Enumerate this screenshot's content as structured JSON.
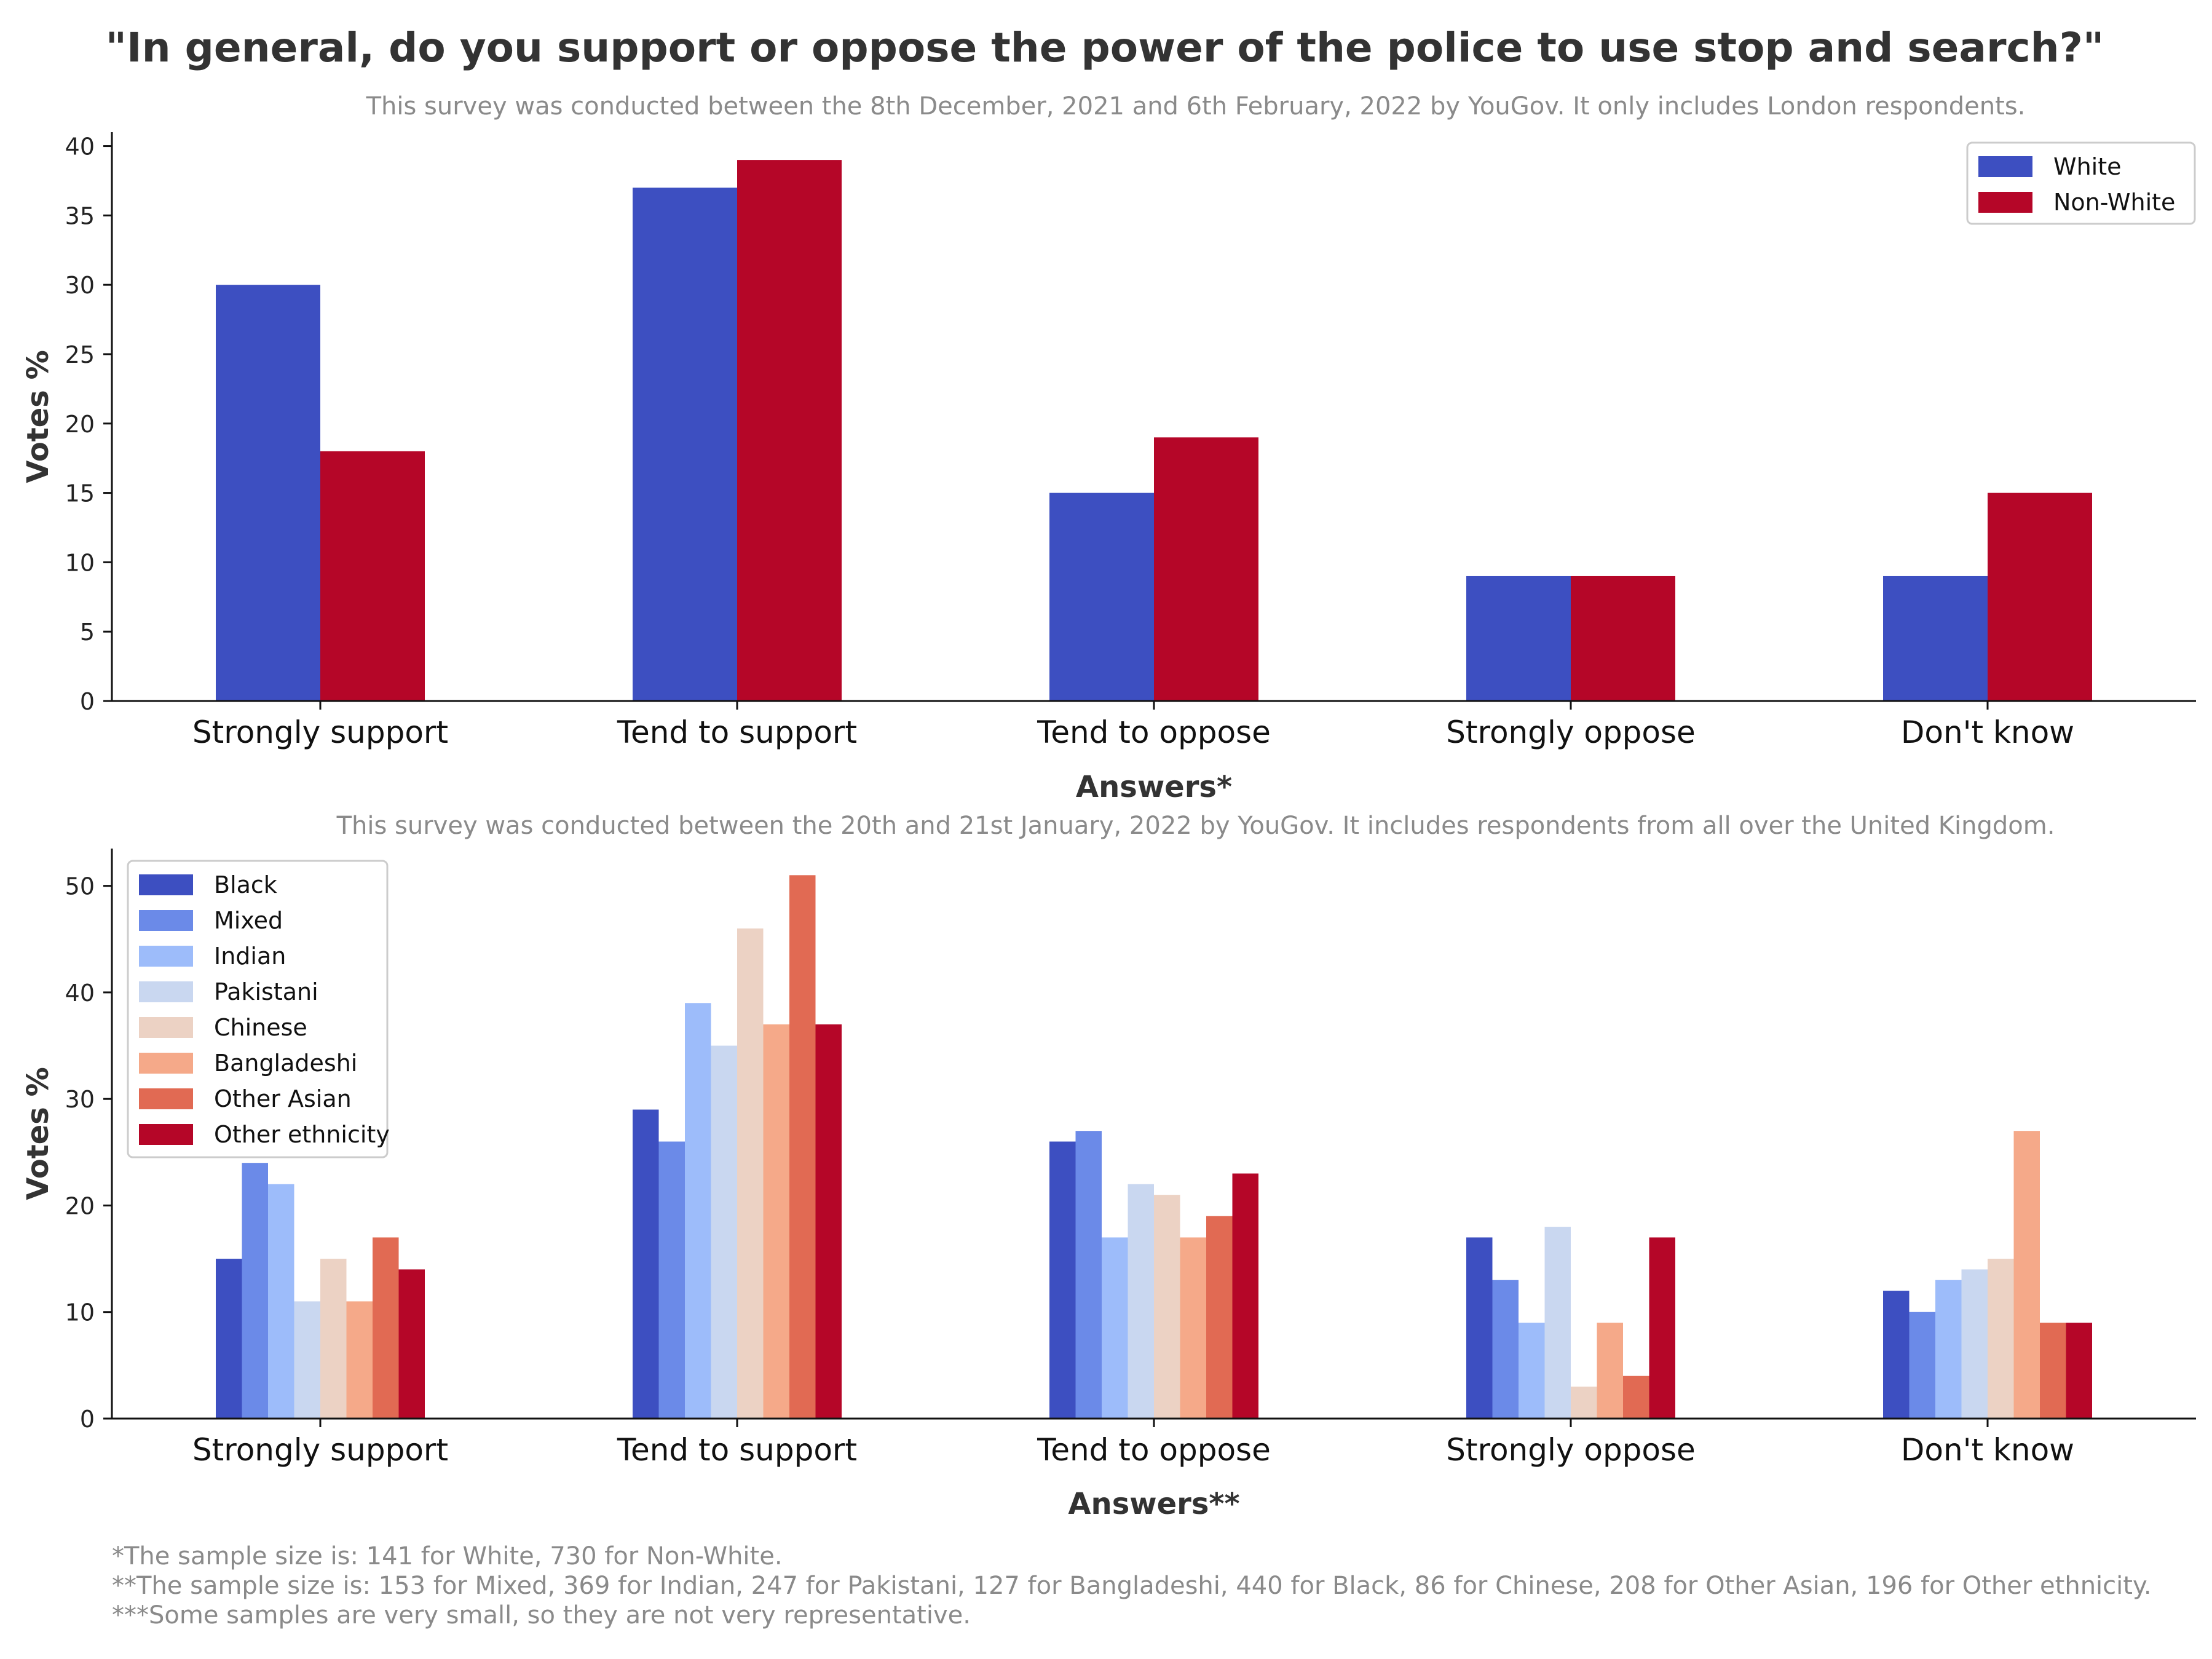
{
  "title": "\"In general, do you support or oppose the power of the police to use stop and search?\"",
  "colors": {
    "axis": "#111111",
    "text": "#333333",
    "muted": "#8a8a8a"
  },
  "chart_data": [
    {
      "type": "bar",
      "subtitle": "This survey was conducted between the 8th December, 2021 and 6th February, 2022 by YouGov. It only includes London respondents.",
      "xlabel": "Answers*",
      "ylabel": "Votes %",
      "ylim": [
        0,
        41
      ],
      "yticks": [
        0,
        5,
        10,
        15,
        20,
        25,
        30,
        35,
        40
      ],
      "grid": false,
      "legend": "top-right",
      "categories": [
        "Strongly support",
        "Tend to support",
        "Tend to oppose",
        "Strongly oppose",
        "Don't know"
      ],
      "series": [
        {
          "name": "White",
          "color": "#3d4fc1",
          "values": [
            30,
            37,
            15,
            9,
            9
          ]
        },
        {
          "name": "Non-White",
          "color": "#b50628",
          "values": [
            18,
            39,
            19,
            9,
            15
          ]
        }
      ]
    },
    {
      "type": "bar",
      "subtitle": "This survey was conducted between the 20th and 21st January, 2022 by YouGov. It includes respondents from all over the United Kingdom.",
      "xlabel": "Answers**",
      "ylabel": "Votes %",
      "ylim": [
        0,
        53.5
      ],
      "yticks": [
        0,
        10,
        20,
        30,
        40,
        50
      ],
      "grid": false,
      "legend": "top-left",
      "categories": [
        "Strongly support",
        "Tend to support",
        "Tend to oppose",
        "Strongly oppose",
        "Don't know"
      ],
      "series": [
        {
          "name": "Black",
          "color": "#3d4fc1",
          "values": [
            15,
            29,
            26,
            17,
            12
          ]
        },
        {
          "name": "Mixed",
          "color": "#6b8ae8",
          "values": [
            24,
            26,
            27,
            13,
            10
          ]
        },
        {
          "name": "Indian",
          "color": "#9dbcfa",
          "values": [
            22,
            39,
            17,
            9,
            13
          ]
        },
        {
          "name": "Pakistani",
          "color": "#c9d7f0",
          "values": [
            11,
            35,
            22,
            18,
            14
          ]
        },
        {
          "name": "Chinese",
          "color": "#ecd2c4",
          "values": [
            15,
            46,
            21,
            3,
            15
          ]
        },
        {
          "name": "Bangladeshi",
          "color": "#f5a989",
          "values": [
            11,
            37,
            17,
            9,
            27
          ]
        },
        {
          "name": "Other Asian",
          "color": "#e16a53",
          "values": [
            17,
            51,
            19,
            4,
            9
          ]
        },
        {
          "name": "Other ethnicity",
          "color": "#b50628",
          "values": [
            14,
            37,
            23,
            17,
            9
          ]
        }
      ]
    }
  ],
  "footnotes": [
    "*The sample size is: 141 for White, 730 for Non-White.",
    "**The sample size is: 153 for Mixed, 369 for Indian, 247 for Pakistani, 127 for Bangladeshi, 440 for Black, 86 for Chinese, 208 for Other Asian, 196 for Other ethnicity.",
    "***Some samples are very small, so they are not very representative."
  ]
}
